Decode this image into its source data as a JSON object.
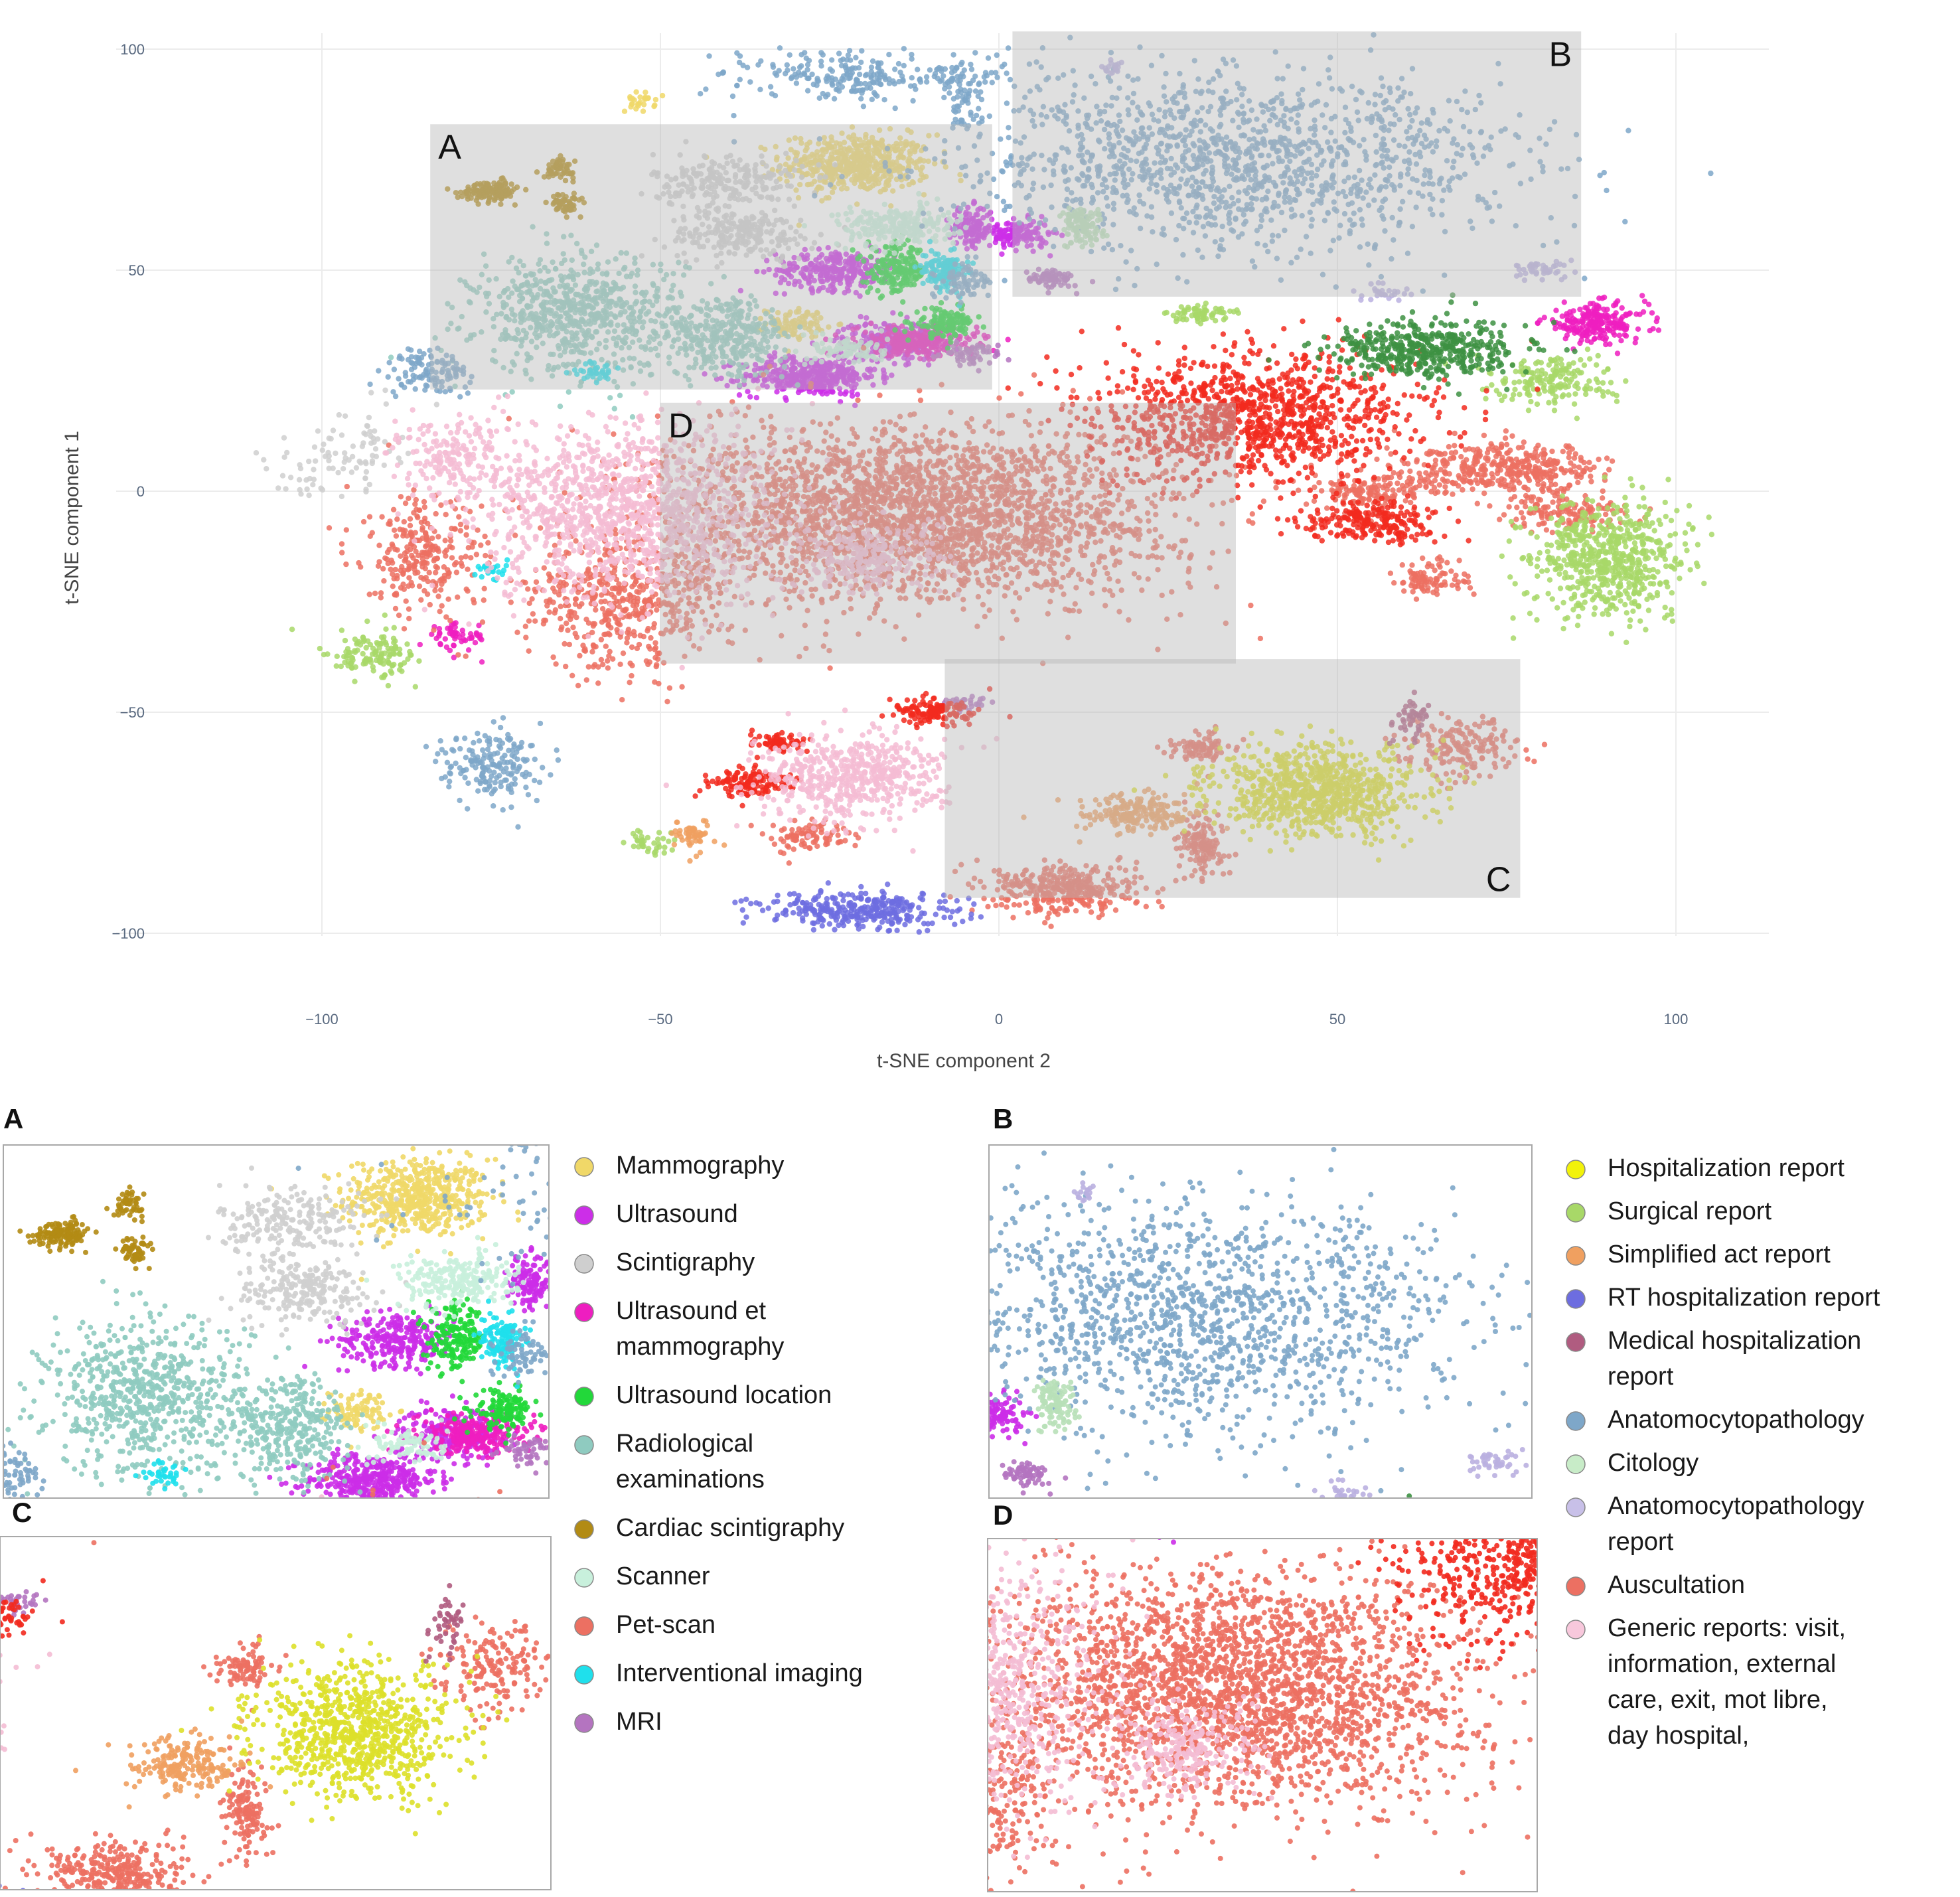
{
  "chart_data": {
    "type": "scatter",
    "title": "",
    "xlabel": "t-SNE component 2",
    "ylabel": "t-SNE component 1",
    "xlim": [
      -120,
      115
    ],
    "ylim": [
      -108,
      105
    ],
    "x_ticks": [
      -100,
      -50,
      0,
      50,
      100
    ],
    "y_ticks": [
      -100,
      -50,
      0,
      50,
      100
    ],
    "grid": true,
    "regions": [
      {
        "label": "A",
        "x": [
          -84,
          -1
        ],
        "y": [
          23,
          83
        ]
      },
      {
        "label": "B",
        "x": [
          2,
          86
        ],
        "y": [
          44,
          104
        ]
      },
      {
        "label": "C",
        "x": [
          -8,
          77
        ],
        "y": [
          -92,
          -38
        ]
      },
      {
        "label": "D",
        "x": [
          -50,
          35
        ],
        "y": [
          -39,
          20
        ]
      }
    ],
    "series": [
      {
        "name": "Mammography",
        "color": "#f0d868",
        "clusters": [
          [
            -21,
            74,
            10,
            6,
            1200
          ],
          [
            -53,
            88,
            2,
            2,
            60
          ],
          [
            -30,
            38,
            4,
            3,
            200
          ]
        ]
      },
      {
        "name": "Ultrasound",
        "color": "#cc2ee8",
        "clusters": [
          [
            -28,
            26,
            9,
            4,
            900
          ],
          [
            -24,
            50,
            8,
            4,
            600
          ],
          [
            -4,
            60,
            3,
            4,
            300
          ],
          [
            3,
            58,
            4,
            3,
            300
          ],
          [
            -16,
            34,
            7,
            4,
            500
          ]
        ]
      },
      {
        "name": "Scintigraphy",
        "color": "#cfcfcf",
        "clusters": [
          [
            -40,
            70,
            10,
            6,
            500
          ],
          [
            -38,
            58,
            10,
            5,
            500
          ],
          [
            -95,
            10,
            6,
            8,
            150
          ],
          [
            -103,
            2,
            8,
            8,
            60
          ]
        ]
      },
      {
        "name": "Ultrasound et mammography",
        "color": "#ee1ec0",
        "clusters": [
          [
            -12,
            34,
            8,
            3,
            600
          ],
          [
            88,
            38,
            7,
            4,
            500
          ],
          [
            -80,
            -33,
            4,
            3,
            120
          ]
        ]
      },
      {
        "name": "Ultrasound location",
        "color": "#22d83a",
        "clusters": [
          [
            -15,
            50,
            4,
            5,
            400
          ],
          [
            -8,
            38,
            4,
            3,
            300
          ]
        ]
      },
      {
        "name": "Radiological examinations",
        "color": "#8fcbc0",
        "clusters": [
          [
            -62,
            40,
            14,
            12,
            1600
          ],
          [
            -40,
            35,
            8,
            8,
            700
          ]
        ]
      },
      {
        "name": "Cardiac scintigraphy",
        "color": "#b28b14",
        "clusters": [
          [
            -75,
            68,
            4,
            2,
            300
          ],
          [
            -65,
            73,
            2,
            2,
            120
          ],
          [
            -64,
            65,
            2,
            2,
            120
          ]
        ]
      },
      {
        "name": "Scanner",
        "color": "#c8f0dc",
        "clusters": [
          [
            -15,
            60,
            8,
            4,
            500
          ],
          [
            -22,
            32,
            5,
            3,
            200
          ]
        ]
      },
      {
        "name": "Pet-scan",
        "color": "#ec7062",
        "clusters": [
          [
            -12,
            -5,
            34,
            18,
            6000
          ],
          [
            -55,
            -25,
            14,
            14,
            1200
          ],
          [
            -85,
            -15,
            8,
            12,
            600
          ],
          [
            75,
            5,
            14,
            5,
            900
          ],
          [
            84,
            -5,
            8,
            4,
            300
          ],
          [
            64,
            -20,
            5,
            4,
            200
          ],
          [
            68,
            -58,
            8,
            6,
            400
          ],
          [
            55,
            0,
            7,
            4,
            300
          ],
          [
            10,
            -90,
            10,
            5,
            800
          ],
          [
            30,
            -80,
            3,
            6,
            300
          ],
          [
            -28,
            -78,
            5,
            3,
            200
          ],
          [
            30,
            -58,
            4,
            3,
            200
          ]
        ]
      },
      {
        "name": "Interventional imaging",
        "color": "#1fe0ec",
        "clusters": [
          [
            -8,
            50,
            3,
            4,
            300
          ],
          [
            -60,
            27,
            3,
            2,
            80
          ],
          [
            -75,
            -18,
            2,
            2,
            50
          ]
        ]
      },
      {
        "name": "MRI",
        "color": "#b474c0",
        "clusters": [
          [
            8,
            48,
            4,
            2,
            150
          ],
          [
            -5,
            -48,
            3,
            2,
            80
          ],
          [
            -4,
            31,
            4,
            2,
            120
          ]
        ]
      },
      {
        "name": "Hospitalization report",
        "color": "#dde02a",
        "clusters": [
          [
            47,
            -68,
            14,
            9,
            1800
          ]
        ]
      },
      {
        "name": "Surgical report",
        "color": "#a8d868",
        "clusters": [
          [
            90,
            -15,
            10,
            12,
            1400
          ],
          [
            82,
            25,
            8,
            5,
            400
          ],
          [
            -93,
            -37,
            6,
            5,
            300
          ],
          [
            30,
            40,
            5,
            2,
            150
          ],
          [
            -52,
            -80,
            3,
            3,
            80
          ]
        ]
      },
      {
        "name": "Simplified act report",
        "color": "#f0a060",
        "clusters": [
          [
            20,
            -73,
            8,
            4,
            450
          ],
          [
            -45,
            -78,
            3,
            3,
            120
          ]
        ]
      },
      {
        "name": "RT hospitalization report",
        "color": "#6d6de0",
        "clusters": [
          [
            -20,
            -95,
            13,
            4,
            700
          ]
        ]
      },
      {
        "name": "Medical hospitalization report",
        "color": "#b05c80",
        "clusters": [
          [
            61,
            -52,
            3,
            4,
            100
          ]
        ]
      },
      {
        "name": "Anatomocytopathology",
        "color": "#7ea7c9",
        "clusters": [
          [
            35,
            75,
            38,
            18,
            3200
          ],
          [
            -22,
            94,
            15,
            5,
            500
          ],
          [
            -84,
            27,
            6,
            5,
            250
          ],
          [
            -75,
            -62,
            7,
            7,
            400
          ],
          [
            -5,
            48,
            4,
            4,
            150
          ],
          [
            -5,
            90,
            3,
            8,
            150
          ]
        ]
      },
      {
        "name": "Citology",
        "color": "#b8e0b8",
        "clusters": [
          [
            12,
            60,
            3,
            4,
            250
          ]
        ]
      },
      {
        "name": "Anatomocytopathology report",
        "color": "#bab0e0",
        "clusters": [
          [
            80,
            50,
            4,
            2,
            100
          ],
          [
            17,
            96,
            2,
            2,
            40
          ],
          [
            57,
            45,
            4,
            2,
            60
          ]
        ]
      },
      {
        "name": "Auscultation",
        "color": "#f22a1f",
        "clusters": [
          [
            38,
            17,
            22,
            13,
            2400
          ],
          [
            55,
            -7,
            9,
            4,
            500
          ],
          [
            -10,
            -50,
            5,
            3,
            300
          ],
          [
            -37,
            -66,
            6,
            3,
            300
          ],
          [
            -33,
            -57,
            4,
            2,
            150
          ]
        ]
      },
      {
        "name": "Generic reports: visit, information, external care, exit, mot libre,  day hospital,",
        "color": "#f4bcd4",
        "clusters": [
          [
            -55,
            -5,
            20,
            18,
            2800
          ],
          [
            -22,
            -65,
            12,
            9,
            1200
          ],
          [
            -20,
            -15,
            10,
            8,
            600
          ],
          [
            -80,
            8,
            8,
            8,
            400
          ]
        ]
      },
      {
        "name": "",
        "color": "#3d9142",
        "clusters": [
          [
            63,
            32,
            13,
            6,
            1000
          ]
        ]
      }
    ]
  },
  "insets": [
    {
      "label": "A"
    },
    {
      "label": "B"
    },
    {
      "label": "C"
    },
    {
      "label": "D"
    }
  ],
  "legend_left": [
    {
      "label": "Mammography",
      "color": "#f0d868"
    },
    {
      "label": "Ultrasound",
      "color": "#cc2ee8"
    },
    {
      "label": "Scintigraphy",
      "color": "#cfcfcf"
    },
    {
      "label": "Ultrasound et mammography",
      "color": "#ee1ec0"
    },
    {
      "label": "Ultrasound location",
      "color": "#22d83a"
    },
    {
      "label": "Radiological examinations",
      "color": "#8fcbc0"
    },
    {
      "label": "Cardiac scintigraphy",
      "color": "#b28b14"
    },
    {
      "label": "Scanner",
      "color": "#c8f0dc"
    },
    {
      "label": "Pet-scan",
      "color": "#ec7062"
    },
    {
      "label": "Interventional imaging",
      "color": "#1fe0ec"
    },
    {
      "label": "MRI",
      "color": "#b474c0"
    }
  ],
  "legend_right": [
    {
      "label": "Hospitalization report",
      "color": "#f2f20a"
    },
    {
      "label": "Surgical report",
      "color": "#a8d868"
    },
    {
      "label": "Simplified act report",
      "color": "#f0a060"
    },
    {
      "label": "RT hospitalization report",
      "color": "#6d6de0"
    },
    {
      "label": "Medical hospitalization report",
      "color": "#b05c80"
    },
    {
      "label": "Anatomocytopathology",
      "color": "#7ea7c9"
    },
    {
      "label": "Citology",
      "color": "#c8ecc8"
    },
    {
      "label": "Anatomocytopathology report",
      "color": "#c8c0e8"
    },
    {
      "label": "Auscultation",
      "color": "#ec7062"
    },
    {
      "label": "Generic reports: visit, information, external care, exit, mot libre,  day hospital,",
      "color": "#f8c8dc"
    }
  ]
}
